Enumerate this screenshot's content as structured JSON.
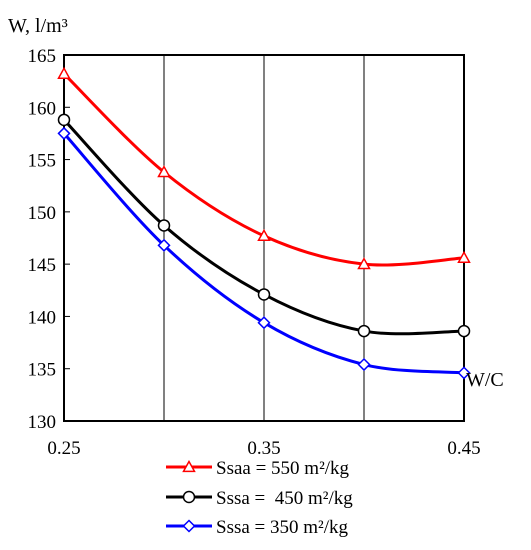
{
  "chart_data": {
    "type": "line",
    "ylabel": "W, l/m³",
    "xlabel": "W/C",
    "x": [
      0.25,
      0.3,
      0.35,
      0.4,
      0.45
    ],
    "xticks": [
      "0.25",
      "0.35",
      "0.45"
    ],
    "yticks": [
      "130",
      "135",
      "140",
      "145",
      "150",
      "155",
      "160",
      "165"
    ],
    "xlim": [
      0.25,
      0.45
    ],
    "ylim": [
      130,
      165
    ],
    "grid": "vertical",
    "legend_position": "bottom",
    "series": [
      {
        "name": "Ssaa = 550 m²/kg",
        "values": [
          163.2,
          153.8,
          147.7,
          145.0,
          145.6
        ],
        "color": "#ff0000",
        "marker": "triangle"
      },
      {
        "name": "Sssa =  450 m²/kg",
        "values": [
          158.8,
          148.7,
          142.1,
          138.6,
          138.6
        ],
        "color": "#000000",
        "marker": "circle"
      },
      {
        "name": "Sssa = 350 m²/kg",
        "values": [
          157.5,
          146.8,
          139.4,
          135.4,
          134.6
        ],
        "color": "#0000ff",
        "marker": "diamond"
      }
    ]
  }
}
